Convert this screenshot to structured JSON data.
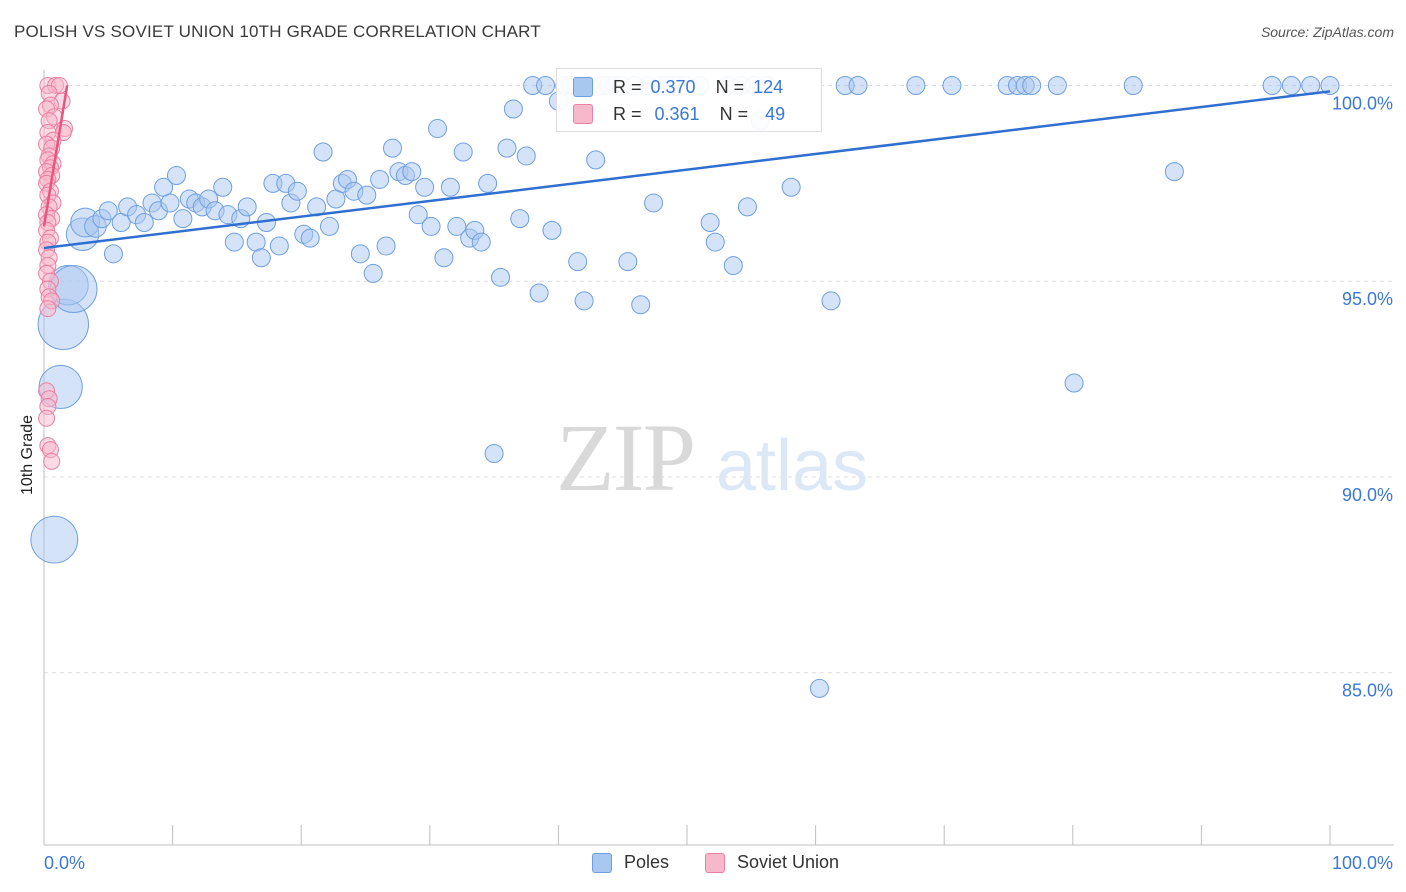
{
  "header": {
    "title": "POLISH VS SOVIET UNION 10TH GRADE CORRELATION CHART",
    "source": "Source: ZipAtlas.com"
  },
  "watermark": {
    "zip": "ZIP",
    "atlas": "atlas"
  },
  "stats": {
    "poles": {
      "r_label": "R = ",
      "r_value": "0.370",
      "n_label": "N = ",
      "n_value": "124"
    },
    "soviet": {
      "r_label": "R = ",
      "r_value": "0.361",
      "n_label": "N = ",
      "n_value": "49"
    }
  },
  "legend": {
    "poles": "Poles",
    "soviet": "Soviet Union"
  },
  "colors": {
    "poles_fill": "#a9c8f0",
    "poles_stroke": "#6f9fe0",
    "poles_line": "#2f6fd0",
    "soviet_fill": "#f7b8cb",
    "soviet_stroke": "#ec7fa2",
    "soviet_line": "#e8557f",
    "tick_text": "#3a78d4",
    "grid": "#dcdcdc"
  },
  "chart_data": {
    "type": "scatter",
    "title": "POLISH VS SOVIET UNION 10TH GRADE CORRELATION CHART",
    "xlabel": "",
    "ylabel": "10th Grade",
    "xlim": [
      0,
      100
    ],
    "ylim": [
      80.6,
      100.6
    ],
    "x_tick_labels": [
      "0.0%",
      "100.0%"
    ],
    "y_ticks": [
      85,
      90,
      95,
      100
    ],
    "y_tick_labels": [
      "85.0%",
      "90.0%",
      "95.0%",
      "100.0%"
    ],
    "grid": "horizontal dashed",
    "legend_position": "bottom-center",
    "series": [
      {
        "name": "Poles",
        "r": 0.37,
        "n": 124,
        "trend": {
          "x": [
            0,
            100
          ],
          "y": [
            95.85,
            99.85
          ]
        },
        "points": [
          [
            0.8,
            88.4,
            2.6
          ],
          [
            1.3,
            92.3,
            2.4
          ],
          [
            1.5,
            93.9,
            2.8
          ],
          [
            1.9,
            94.9,
            2.2
          ],
          [
            2.3,
            94.8,
            2.6
          ],
          [
            3.0,
            96.2,
            1.8
          ],
          [
            3.2,
            96.5,
            1.6
          ],
          [
            4.0,
            96.4,
            1.2
          ],
          [
            4.5,
            96.6,
            1.0
          ],
          [
            5.0,
            96.8,
            1.0
          ],
          [
            5.4,
            95.7,
            1.0
          ],
          [
            6.0,
            96.5,
            1.0
          ],
          [
            6.5,
            96.9,
            1.0
          ],
          [
            7.2,
            96.7,
            1.0
          ],
          [
            7.8,
            96.5,
            1.0
          ],
          [
            8.4,
            97.0,
            1.0
          ],
          [
            8.9,
            96.8,
            1.0
          ],
          [
            9.3,
            97.4,
            1.0
          ],
          [
            9.8,
            97.0,
            1.0
          ],
          [
            10.3,
            97.7,
            1.0
          ],
          [
            10.8,
            96.6,
            1.0
          ],
          [
            11.3,
            97.1,
            1.0
          ],
          [
            11.8,
            97.0,
            1.0
          ],
          [
            12.3,
            96.9,
            1.0
          ],
          [
            12.8,
            97.1,
            1.0
          ],
          [
            13.3,
            96.8,
            1.0
          ],
          [
            13.9,
            97.4,
            1.0
          ],
          [
            14.3,
            96.7,
            1.0
          ],
          [
            14.8,
            96.0,
            1.0
          ],
          [
            15.3,
            96.6,
            1.0
          ],
          [
            15.8,
            96.9,
            1.0
          ],
          [
            16.5,
            96.0,
            1.0
          ],
          [
            16.9,
            95.6,
            1.0
          ],
          [
            17.3,
            96.5,
            1.0
          ],
          [
            17.8,
            97.5,
            1.0
          ],
          [
            18.3,
            95.9,
            1.0
          ],
          [
            18.8,
            97.5,
            1.0
          ],
          [
            19.2,
            97.0,
            1.0
          ],
          [
            19.7,
            97.3,
            1.0
          ],
          [
            20.2,
            96.2,
            1.0
          ],
          [
            20.7,
            96.1,
            1.0
          ],
          [
            21.2,
            96.9,
            1.0
          ],
          [
            21.7,
            98.3,
            1.0
          ],
          [
            22.2,
            96.4,
            1.0
          ],
          [
            22.7,
            97.1,
            1.0
          ],
          [
            23.2,
            97.5,
            1.0
          ],
          [
            23.6,
            97.6,
            1.0
          ],
          [
            24.1,
            97.3,
            1.0
          ],
          [
            24.6,
            95.7,
            1.0
          ],
          [
            25.1,
            97.2,
            1.0
          ],
          [
            25.6,
            95.2,
            1.0
          ],
          [
            26.1,
            97.6,
            1.0
          ],
          [
            26.6,
            95.9,
            1.0
          ],
          [
            27.1,
            98.4,
            1.0
          ],
          [
            27.6,
            97.8,
            1.0
          ],
          [
            28.1,
            97.7,
            1.0
          ],
          [
            28.6,
            97.8,
            1.0
          ],
          [
            29.1,
            96.7,
            1.0
          ],
          [
            29.6,
            97.4,
            1.0
          ],
          [
            30.1,
            96.4,
            1.0
          ],
          [
            30.6,
            98.9,
            1.0
          ],
          [
            31.1,
            95.6,
            1.0
          ],
          [
            31.6,
            97.4,
            1.0
          ],
          [
            32.1,
            96.4,
            1.0
          ],
          [
            32.6,
            98.3,
            1.0
          ],
          [
            33.1,
            96.1,
            1.0
          ],
          [
            33.5,
            96.3,
            1.0
          ],
          [
            34.0,
            96.0,
            1.0
          ],
          [
            34.5,
            97.5,
            1.0
          ],
          [
            35.0,
            90.6,
            1.0
          ],
          [
            35.5,
            95.1,
            1.0
          ],
          [
            36.0,
            98.4,
            1.0
          ],
          [
            36.5,
            99.4,
            1.0
          ],
          [
            37.0,
            96.6,
            1.0
          ],
          [
            37.5,
            98.2,
            1.0
          ],
          [
            38.0,
            100.0,
            1.0
          ],
          [
            38.5,
            94.7,
            1.0
          ],
          [
            39.0,
            100.0,
            1.0
          ],
          [
            39.5,
            96.3,
            1.0
          ],
          [
            40.0,
            99.6,
            1.0
          ],
          [
            40.5,
            100.0,
            1.0
          ],
          [
            41.0,
            100.0,
            1.0
          ],
          [
            41.5,
            95.5,
            1.0
          ],
          [
            42.0,
            94.5,
            1.0
          ],
          [
            42.4,
            100.0,
            1.0
          ],
          [
            42.9,
            98.1,
            1.0
          ],
          [
            43.4,
            100.0,
            1.0
          ],
          [
            43.9,
            100.0,
            1.0
          ],
          [
            44.4,
            100.0,
            1.0
          ],
          [
            44.9,
            100.0,
            1.0
          ],
          [
            45.4,
            95.5,
            1.0
          ],
          [
            45.9,
            100.0,
            1.0
          ],
          [
            46.4,
            94.4,
            1.0
          ],
          [
            46.9,
            100.0,
            1.0
          ],
          [
            47.4,
            97.0,
            1.0
          ],
          [
            47.9,
            100.0,
            1.0
          ],
          [
            48.4,
            100.0,
            1.0
          ],
          [
            48.9,
            100.0,
            1.0
          ],
          [
            49.4,
            100.0,
            1.0
          ],
          [
            49.9,
            100.0,
            1.0
          ],
          [
            51.0,
            100.0,
            1.0
          ],
          [
            51.8,
            96.5,
            1.0
          ],
          [
            52.2,
            96.0,
            1.0
          ],
          [
            53.2,
            100.0,
            1.0
          ],
          [
            53.6,
            95.4,
            1.0
          ],
          [
            54.2,
            100.0,
            1.0
          ],
          [
            54.7,
            96.9,
            1.0
          ],
          [
            55.2,
            100.0,
            1.0
          ],
          [
            55.7,
            99.1,
            1.0
          ],
          [
            56.2,
            100.0,
            1.0
          ],
          [
            58.1,
            97.4,
            1.0
          ],
          [
            60.3,
            84.6,
            1.0
          ],
          [
            61.2,
            94.5,
            1.0
          ],
          [
            62.3,
            100.0,
            1.0
          ],
          [
            63.3,
            100.0,
            1.0
          ],
          [
            67.8,
            100.0,
            1.0
          ],
          [
            70.6,
            100.0,
            1.0
          ],
          [
            74.9,
            100.0,
            1.0
          ],
          [
            75.7,
            100.0,
            1.0
          ],
          [
            76.3,
            100.0,
            1.0
          ],
          [
            76.8,
            100.0,
            1.0
          ],
          [
            78.8,
            100.0,
            1.0
          ],
          [
            80.1,
            92.4,
            1.0
          ],
          [
            84.7,
            100.0,
            1.0
          ],
          [
            87.9,
            97.8,
            1.0
          ],
          [
            100.0,
            100.0,
            1.0
          ],
          [
            98.5,
            100.0,
            1.0
          ],
          [
            97.0,
            100.0,
            1.0
          ],
          [
            95.5,
            100.0,
            1.0
          ]
        ]
      },
      {
        "name": "Soviet Union",
        "r": 0.361,
        "n": 49,
        "trend": {
          "x": [
            0,
            1.8
          ],
          "y": [
            96.4,
            100.0
          ]
        },
        "points": [
          [
            0.3,
            100.0
          ],
          [
            0.9,
            100.0
          ],
          [
            1.2,
            100.0
          ],
          [
            0.4,
            99.8
          ],
          [
            1.4,
            99.6
          ],
          [
            0.5,
            99.5
          ],
          [
            0.2,
            99.4
          ],
          [
            0.8,
            99.2
          ],
          [
            0.4,
            99.1
          ],
          [
            1.6,
            98.9
          ],
          [
            1.5,
            98.8
          ],
          [
            0.3,
            98.8
          ],
          [
            0.7,
            98.6
          ],
          [
            0.2,
            98.5
          ],
          [
            0.6,
            98.4
          ],
          [
            0.4,
            98.2
          ],
          [
            0.3,
            98.1
          ],
          [
            0.7,
            98.0
          ],
          [
            0.5,
            97.9
          ],
          [
            0.2,
            97.8
          ],
          [
            0.6,
            97.7
          ],
          [
            0.3,
            97.6
          ],
          [
            0.2,
            97.5
          ],
          [
            0.5,
            97.3
          ],
          [
            0.3,
            97.2
          ],
          [
            0.7,
            97.0
          ],
          [
            0.4,
            96.9
          ],
          [
            0.2,
            96.7
          ],
          [
            0.6,
            96.6
          ],
          [
            0.3,
            96.5
          ],
          [
            0.2,
            96.3
          ],
          [
            0.5,
            96.1
          ],
          [
            0.3,
            96.0
          ],
          [
            0.2,
            95.8
          ],
          [
            0.4,
            95.6
          ],
          [
            0.3,
            95.4
          ],
          [
            0.2,
            95.2
          ],
          [
            0.5,
            95.0
          ],
          [
            0.3,
            94.8
          ],
          [
            0.4,
            94.6
          ],
          [
            0.6,
            94.5
          ],
          [
            0.3,
            94.3
          ],
          [
            0.2,
            92.2
          ],
          [
            0.4,
            92.0
          ],
          [
            0.3,
            91.8
          ],
          [
            0.2,
            91.5
          ],
          [
            0.3,
            90.8
          ],
          [
            0.5,
            90.7
          ],
          [
            0.6,
            90.4
          ]
        ]
      }
    ]
  }
}
